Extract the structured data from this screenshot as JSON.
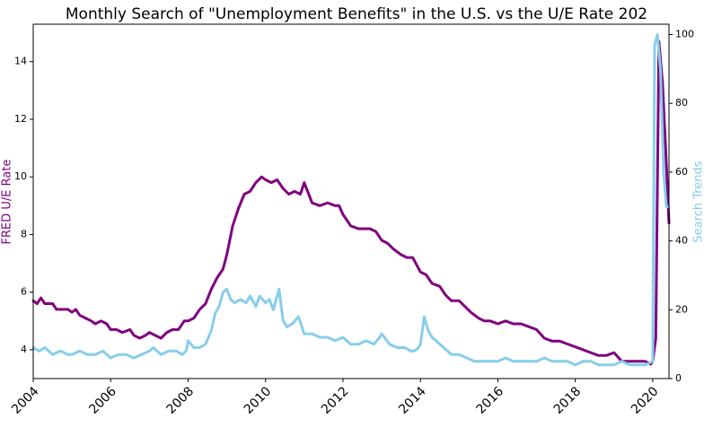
{
  "chart_data": {
    "type": "line",
    "title": "Monthly Search of \"Unemployment Benefits\" in the U.S. vs the U/E Rate 202",
    "xlabel": "",
    "ylabel_left": "FRED U/E Rate",
    "ylabel_right": "Search Trends",
    "xlim": [
      2004.0,
      2020.42
    ],
    "ylim_left": [
      3.0,
      15.3
    ],
    "ylim_right": [
      0,
      103
    ],
    "x_ticks": [
      "2004",
      "2006",
      "2008",
      "2010",
      "2012",
      "2014",
      "2016",
      "2018",
      "2020"
    ],
    "y_ticks_left": [
      "4",
      "6",
      "8",
      "10",
      "12",
      "14"
    ],
    "y_ticks_right": [
      "0",
      "20",
      "40",
      "60",
      "80",
      "100"
    ],
    "grid": false,
    "colors": {
      "ue_rate": "#800080",
      "search": "#87CEEB",
      "axis": "#000000"
    },
    "series": [
      {
        "name": "FRED U/E Rate",
        "axis": "left",
        "x": [
          2004.0,
          2004.1,
          2004.2,
          2004.3,
          2004.5,
          2004.6,
          2004.75,
          2004.9,
          2005.0,
          2005.1,
          2005.2,
          2005.35,
          2005.5,
          2005.6,
          2005.75,
          2005.9,
          2006.0,
          2006.15,
          2006.3,
          2006.5,
          2006.6,
          2006.75,
          2006.9,
          2007.0,
          2007.15,
          2007.3,
          2007.45,
          2007.6,
          2007.75,
          2007.9,
          2008.0,
          2008.15,
          2008.3,
          2008.45,
          2008.6,
          2008.75,
          2008.9,
          2009.0,
          2009.15,
          2009.3,
          2009.45,
          2009.6,
          2009.75,
          2009.9,
          2010.0,
          2010.15,
          2010.3,
          2010.45,
          2010.6,
          2010.75,
          2010.9,
          2011.0,
          2011.2,
          2011.4,
          2011.6,
          2011.8,
          2011.9,
          2012.0,
          2012.2,
          2012.4,
          2012.55,
          2012.7,
          2012.85,
          2013.0,
          2013.15,
          2013.3,
          2013.5,
          2013.65,
          2013.8,
          2014.0,
          2014.15,
          2014.3,
          2014.5,
          2014.65,
          2014.8,
          2015.0,
          2015.15,
          2015.3,
          2015.5,
          2015.65,
          2015.8,
          2016.0,
          2016.2,
          2016.4,
          2016.6,
          2016.8,
          2017.0,
          2017.2,
          2017.4,
          2017.6,
          2017.8,
          2018.0,
          2018.2,
          2018.4,
          2018.6,
          2018.8,
          2019.0,
          2019.2,
          2019.4,
          2019.6,
          2019.8,
          2019.95,
          2020.0,
          2020.08,
          2020.16,
          2020.25,
          2020.33,
          2020.42
        ],
        "y": [
          5.7,
          5.6,
          5.8,
          5.6,
          5.6,
          5.4,
          5.4,
          5.4,
          5.3,
          5.4,
          5.2,
          5.1,
          5.0,
          4.9,
          5.0,
          4.9,
          4.7,
          4.7,
          4.6,
          4.7,
          4.5,
          4.4,
          4.5,
          4.6,
          4.5,
          4.4,
          4.6,
          4.7,
          4.7,
          5.0,
          5.0,
          5.1,
          5.4,
          5.6,
          6.1,
          6.5,
          6.8,
          7.3,
          8.3,
          8.9,
          9.4,
          9.5,
          9.8,
          10.0,
          9.9,
          9.8,
          9.9,
          9.6,
          9.4,
          9.5,
          9.4,
          9.8,
          9.1,
          9.0,
          9.1,
          9.0,
          9.0,
          8.7,
          8.3,
          8.2,
          8.2,
          8.2,
          8.1,
          7.8,
          7.7,
          7.5,
          7.3,
          7.2,
          7.2,
          6.7,
          6.6,
          6.3,
          6.2,
          5.9,
          5.7,
          5.7,
          5.5,
          5.3,
          5.1,
          5.0,
          5.0,
          4.9,
          5.0,
          4.9,
          4.9,
          4.8,
          4.7,
          4.4,
          4.3,
          4.3,
          4.2,
          4.1,
          4.0,
          3.9,
          3.8,
          3.8,
          3.9,
          3.6,
          3.6,
          3.6,
          3.6,
          3.5,
          3.6,
          4.4,
          14.7,
          13.3,
          11.1,
          8.4
        ]
      },
      {
        "name": "Search Trends",
        "axis": "right",
        "x": [
          2004.0,
          2004.15,
          2004.3,
          2004.5,
          2004.7,
          2004.9,
          2005.0,
          2005.2,
          2005.4,
          2005.6,
          2005.8,
          2006.0,
          2006.2,
          2006.4,
          2006.6,
          2006.8,
          2007.0,
          2007.1,
          2007.3,
          2007.5,
          2007.7,
          2007.85,
          2007.95,
          2008.0,
          2008.15,
          2008.3,
          2008.45,
          2008.6,
          2008.7,
          2008.8,
          2008.9,
          2009.0,
          2009.1,
          2009.2,
          2009.35,
          2009.5,
          2009.6,
          2009.75,
          2009.85,
          2010.0,
          2010.1,
          2010.2,
          2010.35,
          2010.45,
          2010.55,
          2010.7,
          2010.85,
          2011.0,
          2011.2,
          2011.4,
          2011.6,
          2011.8,
          2012.0,
          2012.2,
          2012.4,
          2012.6,
          2012.8,
          2012.95,
          2013.0,
          2013.2,
          2013.4,
          2013.6,
          2013.75,
          2013.85,
          2013.95,
          2014.0,
          2014.1,
          2014.2,
          2014.3,
          2014.4,
          2014.6,
          2014.8,
          2015.0,
          2015.2,
          2015.4,
          2015.6,
          2015.8,
          2016.0,
          2016.2,
          2016.4,
          2016.6,
          2016.8,
          2017.0,
          2017.2,
          2017.4,
          2017.6,
          2017.8,
          2018.0,
          2018.2,
          2018.4,
          2018.6,
          2018.8,
          2019.0,
          2019.2,
          2019.4,
          2019.6,
          2019.8,
          2020.0,
          2020.05,
          2020.12,
          2020.2,
          2020.28,
          2020.35,
          2020.42
        ],
        "y": [
          9,
          8,
          9,
          7,
          8,
          7,
          7,
          8,
          7,
          7,
          8,
          6,
          7,
          7,
          6,
          7,
          8,
          9,
          7,
          8,
          8,
          7,
          8,
          11,
          9,
          9,
          10,
          14,
          19,
          21,
          25,
          26,
          23,
          22,
          23,
          22,
          24,
          21,
          24,
          22,
          23,
          20,
          26,
          17,
          15,
          16,
          18,
          13,
          13,
          12,
          12,
          11,
          12,
          10,
          10,
          11,
          10,
          12,
          13,
          10,
          9,
          9,
          8,
          8,
          9,
          10,
          18,
          14,
          12,
          11,
          9,
          7,
          7,
          6,
          5,
          5,
          5,
          5,
          6,
          5,
          5,
          5,
          5,
          6,
          5,
          5,
          5,
          4,
          5,
          5,
          4,
          4,
          4,
          5,
          4,
          4,
          4,
          5,
          97,
          100,
          90,
          60,
          50,
          50
        ]
      }
    ]
  }
}
